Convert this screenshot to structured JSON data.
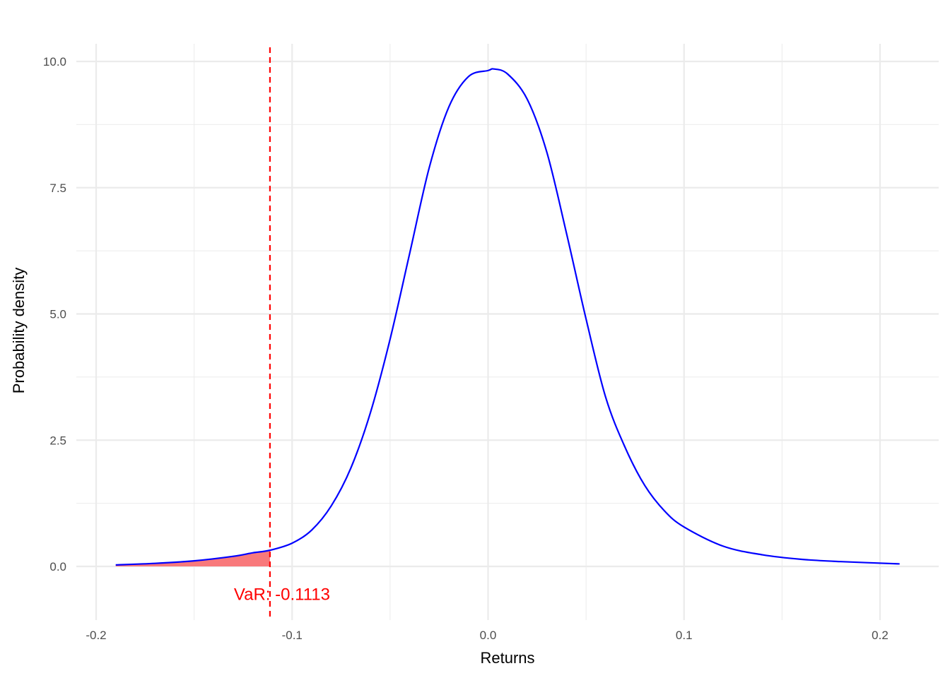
{
  "chart_data": {
    "type": "line",
    "xlabel": "Returns",
    "ylabel": "Probability density",
    "xlim": [
      -0.2,
      0.22
    ],
    "ylim": [
      -1.0,
      10.3
    ],
    "x_ticks": [
      -0.2,
      -0.1,
      0.0,
      0.1,
      0.2
    ],
    "x_tick_labels": [
      "-0.2",
      "-0.1",
      "0.0",
      "0.1",
      "0.2"
    ],
    "y_ticks": [
      0.0,
      2.5,
      5.0,
      7.5,
      10.0
    ],
    "y_tick_labels": [
      "0.0",
      "2.5",
      "5.0",
      "7.5",
      "10.0"
    ],
    "grid": true,
    "series": [
      {
        "color": "#0000ff",
        "x": [
          -0.19,
          -0.17,
          -0.15,
          -0.13,
          -0.12,
          -0.1113,
          -0.1,
          -0.09,
          -0.08,
          -0.07,
          -0.06,
          -0.05,
          -0.04,
          -0.03,
          -0.02,
          -0.01,
          0.0,
          0.003,
          0.01,
          0.02,
          0.03,
          0.04,
          0.05,
          0.06,
          0.07,
          0.08,
          0.09,
          0.1,
          0.12,
          0.14,
          0.16,
          0.18,
          0.21
        ],
        "y": [
          0.03,
          0.06,
          0.11,
          0.2,
          0.27,
          0.32,
          0.46,
          0.72,
          1.2,
          1.95,
          3.05,
          4.5,
          6.2,
          7.9,
          9.1,
          9.7,
          9.82,
          9.85,
          9.75,
          9.25,
          8.2,
          6.6,
          4.9,
          3.35,
          2.35,
          1.6,
          1.1,
          0.78,
          0.4,
          0.23,
          0.14,
          0.095,
          0.05
        ]
      }
    ],
    "var_line": {
      "x": -0.1113,
      "color": "#ff0000",
      "style": "dashed"
    },
    "tail_fill": {
      "color": "#f8797b",
      "to_x": -0.1113
    },
    "annotation": {
      "text": "VaR: -0.1113",
      "x": -0.1113,
      "y": -0.55,
      "color": "#ff0000"
    }
  }
}
